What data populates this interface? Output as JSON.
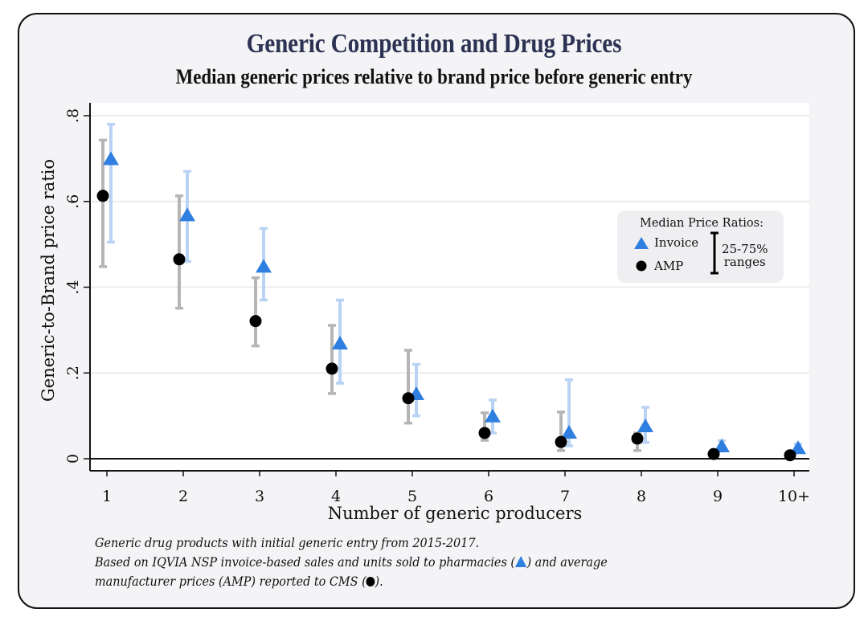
{
  "colors": {
    "invoice_marker": "#2f7fe0",
    "invoice_range": "#b9d3f5",
    "amp_marker": "#000000",
    "amp_range": "#b5b5b5",
    "title": "#2b3252"
  },
  "legend": {
    "title": "Median Price Ratios:",
    "invoice_label": "Invoice",
    "amp_label": "AMP",
    "range_label_line1": "25-75%",
    "range_label_line2": "ranges"
  },
  "notes": {
    "line1": "Generic drug products with initial generic entry from 2015-2017.",
    "line2_pre": "Based on IQVIA NSP invoice-based sales and units sold to pharmacies (",
    "line2_post": ") and average",
    "line3_pre": "manufacturer prices (AMP) reported to CMS (",
    "line3_post": ")."
  },
  "chart_data": {
    "type": "scatter",
    "title": "Generic Competition and Drug Prices",
    "subtitle": "Median generic prices relative to brand price before generic entry",
    "xlabel": "Number of generic producers",
    "ylabel": "Generic-to-Brand price ratio",
    "categories": [
      "1",
      "2",
      "3",
      "4",
      "5",
      "6",
      "7",
      "8",
      "9",
      "10+"
    ],
    "y_ticks": [
      0,
      0.2,
      0.4,
      0.6,
      0.8
    ],
    "y_tick_labels": [
      "0",
      ".2",
      ".4",
      ".6",
      ".8"
    ],
    "ylim": [
      0,
      0.8
    ],
    "grid": true,
    "legend_position": "right",
    "series": [
      {
        "name": "Invoice",
        "marker": "triangle",
        "median": [
          0.698,
          0.567,
          0.447,
          0.268,
          0.15,
          0.098,
          0.06,
          0.075,
          0.028,
          0.024
        ],
        "p25": [
          0.505,
          0.46,
          0.37,
          0.176,
          0.1,
          0.06,
          0.03,
          0.038,
          0.018,
          0.016
        ],
        "p75": [
          0.78,
          0.67,
          0.537,
          0.37,
          0.22,
          0.137,
          0.184,
          0.12,
          0.042,
          0.034
        ]
      },
      {
        "name": "AMP",
        "marker": "circle",
        "median": [
          0.613,
          0.465,
          0.321,
          0.21,
          0.141,
          0.06,
          0.039,
          0.047,
          0.011,
          0.008
        ],
        "p25": [
          0.448,
          0.351,
          0.263,
          0.152,
          0.083,
          0.043,
          0.019,
          0.019,
          0.005,
          0.004
        ],
        "p75": [
          0.743,
          0.613,
          0.422,
          0.311,
          0.253,
          0.107,
          0.109,
          0.06,
          0.02,
          0.014
        ]
      }
    ]
  }
}
